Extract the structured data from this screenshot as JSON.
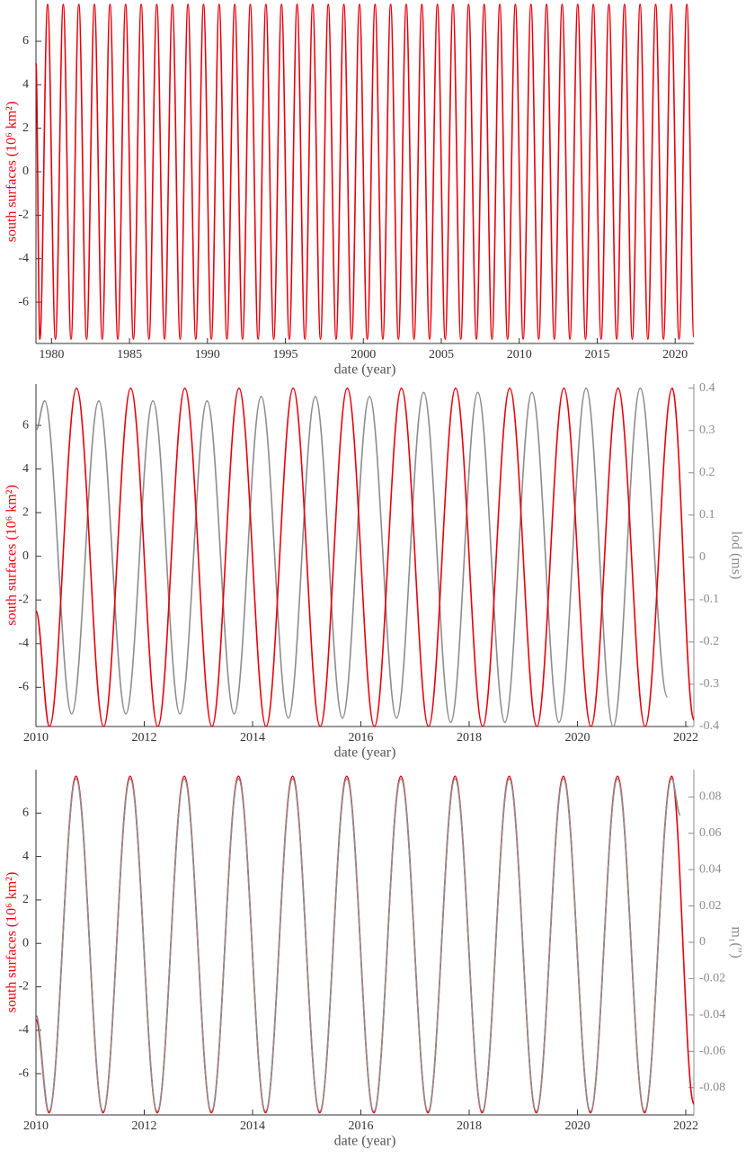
{
  "chart_data": [
    {
      "type": "line",
      "xlabel": "date (year)",
      "ylabel": "south surfaces (10⁶ km²)",
      "xlim": [
        1979,
        2021.2
      ],
      "xticks": [
        1980,
        1985,
        1990,
        1995,
        2000,
        2005,
        2010,
        2015,
        2020
      ],
      "ylim": [
        -7.9,
        7.9
      ],
      "yticks": [
        -6,
        -4,
        -2,
        0,
        2,
        4,
        6
      ],
      "series": [
        {
          "color": "#e8000b",
          "axis": "y",
          "x": [
            1979,
            1979.25,
            1979.75,
            1980.25,
            1980.75,
            1981.25,
            1981.75,
            1982.25,
            1982.75,
            1983.25,
            1983.75,
            1984.25,
            1984.75,
            1985.25,
            1985.75,
            1986.25,
            1986.75,
            1987.25,
            1987.75,
            1988.25,
            1988.75,
            1989.25,
            1989.75,
            1990.25,
            1990.75,
            1991.25,
            1991.75,
            1992.25,
            1992.75,
            1993.25,
            1993.75,
            1994.25,
            1994.75,
            1995.25,
            1995.75,
            1996.25,
            1996.75,
            1997.25,
            1997.75,
            1998.25,
            1998.75,
            1999.25,
            1999.75,
            2000.25,
            2000.75,
            2001.25,
            2001.75,
            2002.25,
            2002.75,
            2003.25,
            2003.75,
            2004.25,
            2004.75,
            2005.25,
            2005.75,
            2006.25,
            2006.75,
            2007.25,
            2007.75,
            2008.25,
            2008.75,
            2009.25,
            2009.75,
            2010.25,
            2010.75,
            2011.25,
            2011.75,
            2012.25,
            2012.75,
            2013.25,
            2013.75,
            2014.25,
            2014.75,
            2015.25,
            2015.75,
            2016.25,
            2016.75,
            2017.25,
            2017.75,
            2018.25,
            2018.75,
            2019.25,
            2019.75,
            2020.25,
            2020.75,
            2021.2
          ],
          "values": [
            5,
            -7.7,
            7.7,
            -7.7,
            7.7,
            -7.7,
            7.7,
            -7.7,
            7.7,
            -7.7,
            7.7,
            -7.7,
            7.7,
            -7.7,
            7.7,
            -7.7,
            7.7,
            -7.7,
            7.7,
            -7.7,
            7.7,
            -7.7,
            7.7,
            -7.7,
            7.7,
            -7.7,
            7.7,
            -7.7,
            7.7,
            -7.7,
            7.7,
            -7.7,
            7.7,
            -7.7,
            7.7,
            -7.7,
            7.7,
            -7.7,
            7.7,
            -7.7,
            7.7,
            -7.7,
            7.7,
            -7.7,
            7.7,
            -7.7,
            7.7,
            -7.7,
            7.7,
            -7.7,
            7.7,
            -7.7,
            7.7,
            -7.7,
            7.7,
            -7.7,
            7.7,
            -7.7,
            7.7,
            -7.7,
            7.7,
            -7.7,
            7.7,
            -7.7,
            7.7,
            -7.7,
            7.7,
            -7.7,
            7.7,
            -7.7,
            7.7,
            -7.7,
            7.7,
            -7.7,
            7.7,
            -7.7,
            7.7,
            -7.7,
            7.7,
            -7.7,
            7.7,
            -7.7,
            7.7,
            -7.7,
            7.7,
            -7.6
          ]
        }
      ]
    },
    {
      "type": "line",
      "xlabel": "date (year)",
      "ylabel": "south surfaces (10⁶ km²)",
      "y2label": "lod (ms)",
      "xlim": [
        2010,
        2022.15
      ],
      "xticks": [
        2010,
        2012,
        2014,
        2016,
        2018,
        2020,
        2022
      ],
      "ylim": [
        -7.8,
        7.9
      ],
      "yticks": [
        -6,
        -4,
        -2,
        0,
        2,
        4,
        6
      ],
      "y2lim": [
        -0.4,
        0.41
      ],
      "y2ticks": [
        -0.4,
        -0.3,
        -0.2,
        -0.1,
        0,
        0.1,
        0.2,
        0.3,
        0.4
      ],
      "series": [
        {
          "color": "#8c8c8c",
          "axis": "y2",
          "x": [
            2010,
            2010.16,
            2010.66,
            2011.16,
            2011.66,
            2012.16,
            2012.66,
            2013.16,
            2013.66,
            2014.16,
            2014.66,
            2015.16,
            2015.66,
            2016.16,
            2016.66,
            2017.16,
            2017.66,
            2018.16,
            2018.66,
            2019.16,
            2019.66,
            2020.16,
            2020.66,
            2021.16,
            2021.66
          ],
          "values": [
            0.3,
            0.37,
            -0.37,
            0.37,
            -0.37,
            0.37,
            -0.37,
            0.37,
            -0.37,
            0.38,
            -0.38,
            0.38,
            -0.38,
            0.38,
            -0.38,
            0.39,
            -0.39,
            0.39,
            -0.39,
            0.39,
            -0.39,
            0.4,
            -0.4,
            0.4,
            -0.33
          ]
        },
        {
          "color": "#e8000b",
          "axis": "y",
          "x": [
            2010,
            2010.25,
            2010.75,
            2011.25,
            2011.75,
            2012.25,
            2012.75,
            2013.25,
            2013.75,
            2014.25,
            2014.75,
            2015.25,
            2015.75,
            2016.25,
            2016.75,
            2017.25,
            2017.75,
            2018.25,
            2018.75,
            2019.25,
            2019.75,
            2020.25,
            2020.75,
            2021.25,
            2021.75,
            2022.15
          ],
          "values": [
            -2.5,
            -7.8,
            7.7,
            -7.8,
            7.7,
            -7.8,
            7.7,
            -7.8,
            7.7,
            -7.8,
            7.7,
            -7.8,
            7.7,
            -7.8,
            7.7,
            -7.8,
            7.7,
            -7.8,
            7.7,
            -7.8,
            7.7,
            -7.8,
            7.7,
            -7.8,
            7.7,
            -7.5
          ]
        }
      ]
    },
    {
      "type": "line",
      "xlabel": "date (year)",
      "ylabel": "south surfaces (10⁶ km²)",
      "y2label": "m₁(″)",
      "xlim": [
        2010,
        2022.15
      ],
      "xticks": [
        2010,
        2012,
        2014,
        2016,
        2018,
        2020,
        2022
      ],
      "ylim": [
        -7.9,
        8.0
      ],
      "yticks": [
        -6,
        -4,
        -2,
        0,
        2,
        4,
        6
      ],
      "y2lim": [
        -0.095,
        0.095
      ],
      "y2ticks": [
        -0.08,
        -0.06,
        -0.04,
        -0.02,
        0,
        0.02,
        0.04,
        0.06,
        0.08
      ],
      "series": [
        {
          "color": "#e8000b",
          "axis": "y",
          "x": [
            2010,
            2010.24,
            2010.74,
            2011.24,
            2011.74,
            2012.24,
            2012.74,
            2013.24,
            2013.74,
            2014.24,
            2014.74,
            2015.24,
            2015.74,
            2016.24,
            2016.74,
            2017.24,
            2017.74,
            2018.24,
            2018.74,
            2019.24,
            2019.74,
            2020.24,
            2020.74,
            2021.24,
            2021.74,
            2022.15
          ],
          "values": [
            -3.5,
            -7.8,
            7.7,
            -7.8,
            7.7,
            -7.8,
            7.7,
            -7.8,
            7.7,
            -7.8,
            7.7,
            -7.8,
            7.7,
            -7.8,
            7.7,
            -7.8,
            7.7,
            -7.8,
            7.7,
            -7.8,
            7.7,
            -7.8,
            7.7,
            -7.8,
            7.7,
            -7.4
          ]
        },
        {
          "color": "#8c8c8c",
          "axis": "y2",
          "x": [
            2010,
            2010.24,
            2010.74,
            2011.24,
            2011.74,
            2012.24,
            2012.74,
            2013.24,
            2013.74,
            2014.24,
            2014.74,
            2015.24,
            2015.74,
            2016.24,
            2016.74,
            2017.24,
            2017.74,
            2018.24,
            2018.74,
            2019.24,
            2019.74,
            2020.24,
            2020.74,
            2021.24,
            2021.74,
            2021.9
          ],
          "values": [
            -0.04,
            -0.093,
            0.09,
            -0.093,
            0.09,
            -0.093,
            0.09,
            -0.093,
            0.09,
            -0.093,
            0.09,
            -0.093,
            0.09,
            -0.093,
            0.09,
            -0.093,
            0.09,
            -0.093,
            0.09,
            -0.093,
            0.09,
            -0.093,
            0.09,
            -0.093,
            0.09,
            0.07
          ]
        }
      ]
    }
  ]
}
